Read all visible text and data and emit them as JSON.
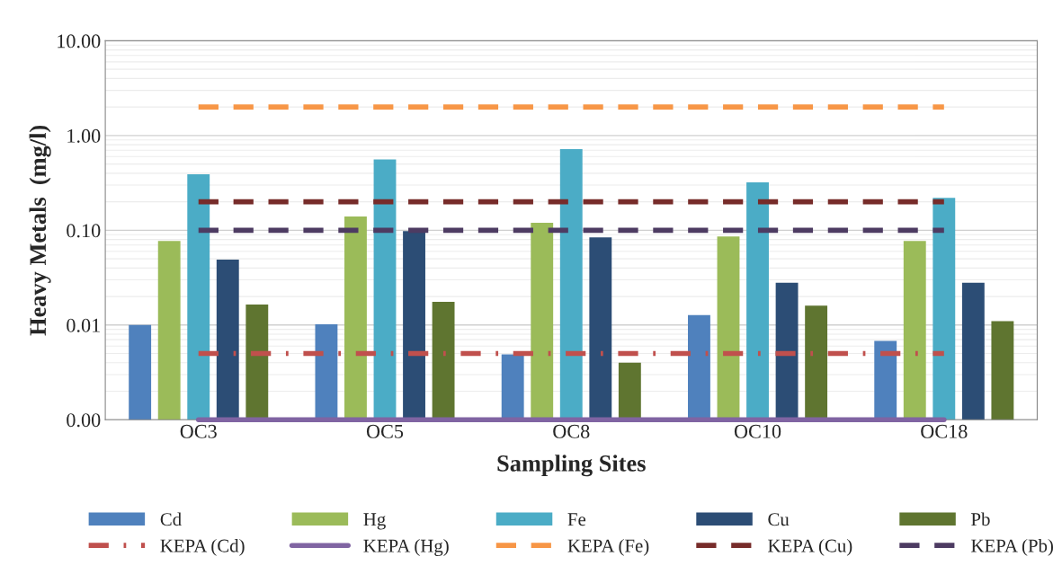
{
  "chart_data": {
    "type": "bar",
    "xlabel": "Sampling Sites",
    "ylabel": "Heavy Metals  (mg/l)",
    "categories": [
      "OC3",
      "OC5",
      "OC8",
      "OC10",
      "OC18"
    ],
    "series": [
      {
        "name": "Cd",
        "color": "#4f81bd",
        "values": [
          0.01,
          0.0102,
          0.0049,
          0.0127,
          0.0068
        ]
      },
      {
        "name": "Hg",
        "color": "#9bbb59",
        "values": [
          0.077,
          0.14,
          0.12,
          0.086,
          0.077
        ]
      },
      {
        "name": "Fe",
        "color": "#4bacc6",
        "values": [
          0.39,
          0.56,
          0.72,
          0.32,
          0.22
        ]
      },
      {
        "name": "Cu",
        "color": "#2c4d75",
        "values": [
          0.049,
          0.098,
          0.084,
          0.028,
          0.028
        ]
      },
      {
        "name": "Pb",
        "color": "#5f7530",
        "values": [
          0.0165,
          0.0176,
          0.004,
          0.016,
          0.011
        ]
      },
      {
        "name": "KEPA (Cd)",
        "type": "line",
        "color": "#c0504d",
        "line_style": "dashdot",
        "values": [
          0.005,
          0.005,
          0.005,
          0.005,
          0.005
        ]
      },
      {
        "name": "KEPA (Hg)",
        "type": "line",
        "color": "#8064a2",
        "line_style": "solid",
        "values": [
          0.001,
          0.001,
          0.001,
          0.001,
          0.001
        ]
      },
      {
        "name": "KEPA (Fe)",
        "type": "line",
        "color": "#f79646",
        "line_style": "dashed",
        "values": [
          2,
          2,
          2,
          2,
          2
        ]
      },
      {
        "name": "KEPA (Cu)",
        "type": "line",
        "color": "#772c2a",
        "line_style": "dashed",
        "values": [
          0.2,
          0.2,
          0.2,
          0.2,
          0.2
        ]
      },
      {
        "name": "KEPA (Pb)",
        "type": "line",
        "color": "#4d3b62",
        "line_style": "dashed",
        "values": [
          0.1,
          0.1,
          0.1,
          0.1,
          0.1
        ]
      }
    ],
    "log": true,
    "ylim": [
      0.001,
      10
    ],
    "yticks": [
      {
        "value": 0.001,
        "label": "0.00"
      },
      {
        "value": 0.01,
        "label": "0.01"
      },
      {
        "value": 0.1,
        "label": "0.10"
      },
      {
        "value": 1,
        "label": "1.00"
      },
      {
        "value": 10,
        "label": "10.00"
      }
    ],
    "grid": "y",
    "legend": "bottom"
  }
}
